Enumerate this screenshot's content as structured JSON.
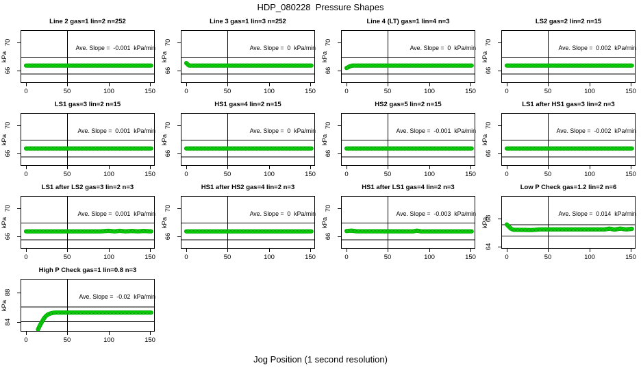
{
  "page": {
    "title": "HDP_080228  Pressure Shapes",
    "xlabel": "Jog Position (1 second resolution)"
  },
  "colors": {
    "point_green_light": "#00E300",
    "point_green_dark": "#009C00",
    "point_green_edge": "#00A800",
    "axis_black": "#000000"
  },
  "chart_data": [
    {
      "type": "scatter",
      "title": "Line 2 gas=1 lin=2 n=252",
      "slope": -0.001,
      "slope_label": "Ave. Slope =  -0.001  kPa/min",
      "ylabel": "kPa",
      "xticks": [
        0,
        50,
        100,
        150
      ],
      "yticks": [
        66,
        70
      ],
      "xlim": [
        -6.6,
        155.4
      ],
      "ylim": [
        64.2,
        71.8
      ],
      "vline": 50,
      "hlines": [
        67.9,
        65.5
      ],
      "points": [
        [
          0,
          66.7
        ],
        [
          151,
          66.7
        ]
      ]
    },
    {
      "type": "scatter",
      "title": "Line 3 gas=1 lin=3 n=252",
      "slope": 0,
      "slope_label": "Ave. Slope =  0  kPa/min",
      "ylabel": "kPa",
      "xticks": [
        0,
        50,
        100,
        150
      ],
      "yticks": [
        66,
        70
      ],
      "xlim": [
        -6.6,
        155.4
      ],
      "ylim": [
        64.2,
        71.8
      ],
      "vline": 50,
      "hlines": [
        67.9,
        65.5
      ],
      "points": [
        [
          0,
          67.05
        ],
        [
          1.5,
          66.9
        ],
        [
          3,
          66.72
        ],
        [
          5,
          66.7
        ],
        [
          151,
          66.7
        ]
      ]
    },
    {
      "type": "scatter",
      "title": "Line 4 (LT) gas=1 lin=4 n=3",
      "slope": 0,
      "slope_label": "Ave. Slope =  0  kPa/min",
      "ylabel": "kPa",
      "xticks": [
        0,
        50,
        100,
        150
      ],
      "yticks": [
        66,
        70
      ],
      "xlim": [
        -6.6,
        155.4
      ],
      "ylim": [
        64.2,
        71.8
      ],
      "vline": 50,
      "hlines": [
        67.9,
        65.5
      ],
      "points": [
        [
          0,
          66.35
        ],
        [
          2,
          66.45
        ],
        [
          4,
          66.6
        ],
        [
          7,
          66.7
        ],
        [
          151,
          66.7
        ]
      ]
    },
    {
      "type": "scatter",
      "title": "LS2 gas=2 lin=2 n=15",
      "slope": 0.002,
      "slope_label": "Ave. Slope =  0.002  kPa/min",
      "ylabel": "kPa",
      "xticks": [
        0,
        50,
        100,
        150
      ],
      "yticks": [
        66,
        70
      ],
      "xlim": [
        -6.6,
        155.4
      ],
      "ylim": [
        64.2,
        71.8
      ],
      "vline": 50,
      "hlines": [
        67.9,
        65.5
      ],
      "points": [
        [
          0,
          66.7
        ],
        [
          151,
          66.7
        ]
      ]
    },
    {
      "type": "scatter",
      "title": "LS1 gas=3 lin=2 n=15",
      "slope": 0.001,
      "slope_label": "Ave. Slope =  0.001  kPa/min",
      "ylabel": "kPa",
      "xticks": [
        0,
        50,
        100,
        150
      ],
      "yticks": [
        66,
        70
      ],
      "xlim": [
        -6.6,
        155.4
      ],
      "ylim": [
        64.2,
        71.8
      ],
      "vline": 50,
      "hlines": [
        67.9,
        65.5
      ],
      "points": [
        [
          0,
          66.7
        ],
        [
          151,
          66.7
        ]
      ]
    },
    {
      "type": "scatter",
      "title": "HS1 gas=4 lin=2 n=15",
      "slope": 0,
      "slope_label": "Ave. Slope =  0  kPa/min",
      "ylabel": "kPa",
      "xticks": [
        0,
        50,
        100,
        150
      ],
      "yticks": [
        66,
        70
      ],
      "xlim": [
        -6.6,
        155.4
      ],
      "ylim": [
        64.2,
        71.8
      ],
      "vline": 50,
      "hlines": [
        67.9,
        65.5
      ],
      "points": [
        [
          0,
          66.7
        ],
        [
          151,
          66.7
        ]
      ]
    },
    {
      "type": "scatter",
      "title": "HS2 gas=5 lin=2 n=15",
      "slope": -0.001,
      "slope_label": "Ave. Slope =  -0.001  kPa/min",
      "ylabel": "kPa",
      "xticks": [
        0,
        50,
        100,
        150
      ],
      "yticks": [
        66,
        70
      ],
      "xlim": [
        -6.6,
        155.4
      ],
      "ylim": [
        64.2,
        71.8
      ],
      "vline": 50,
      "hlines": [
        67.9,
        65.5
      ],
      "points": [
        [
          0,
          66.7
        ],
        [
          151,
          66.7
        ]
      ]
    },
    {
      "type": "scatter",
      "title": "LS1 after HS1 gas=3 lin=2 n=3",
      "slope": -0.002,
      "slope_label": "Ave. Slope =  -0.002  kPa/min",
      "ylabel": "kPa",
      "xticks": [
        0,
        50,
        100,
        150
      ],
      "yticks": [
        66,
        70
      ],
      "xlim": [
        -6.6,
        155.4
      ],
      "ylim": [
        64.2,
        71.8
      ],
      "vline": 50,
      "hlines": [
        67.9,
        65.5
      ],
      "points": [
        [
          0,
          66.7
        ],
        [
          151,
          66.7
        ]
      ]
    },
    {
      "type": "scatter",
      "title": "LS1 after LS2 gas=3 lin=2 n=3",
      "slope": 0.001,
      "slope_label": "Ave. Slope =  0.001  kPa/min",
      "ylabel": "kPa",
      "xticks": [
        0,
        50,
        100,
        150
      ],
      "yticks": [
        66,
        70
      ],
      "xlim": [
        -6.6,
        155.4
      ],
      "ylim": [
        64.2,
        71.8
      ],
      "vline": 50,
      "hlines": [
        67.9,
        65.5
      ],
      "points": [
        [
          0,
          66.7
        ],
        [
          90,
          66.7
        ],
        [
          100,
          66.78
        ],
        [
          107,
          66.7
        ],
        [
          113,
          66.78
        ],
        [
          120,
          66.7
        ],
        [
          128,
          66.76
        ],
        [
          135,
          66.7
        ],
        [
          142,
          66.76
        ],
        [
          151,
          66.7
        ]
      ]
    },
    {
      "type": "scatter",
      "title": "HS1 after HS2 gas=4 lin=2 n=3",
      "slope": 0,
      "slope_label": "Ave. Slope =  0  kPa/min",
      "ylabel": "kPa",
      "xticks": [
        0,
        50,
        100,
        150
      ],
      "yticks": [
        66,
        70
      ],
      "xlim": [
        -6.6,
        155.4
      ],
      "ylim": [
        64.2,
        71.8
      ],
      "vline": 50,
      "hlines": [
        67.9,
        65.5
      ],
      "points": [
        [
          0,
          66.7
        ],
        [
          151,
          66.7
        ]
      ]
    },
    {
      "type": "scatter",
      "title": "HS1 after LS1 gas=4 lin=2 n=3",
      "slope": -0.003,
      "slope_label": "Ave. Slope =  -0.003  kPa/min",
      "ylabel": "kPa",
      "xticks": [
        0,
        50,
        100,
        150
      ],
      "yticks": [
        66,
        70
      ],
      "xlim": [
        -6.6,
        155.4
      ],
      "ylim": [
        64.2,
        71.8
      ],
      "vline": 50,
      "hlines": [
        67.9,
        65.5
      ],
      "points": [
        [
          0,
          66.75
        ],
        [
          6,
          66.8
        ],
        [
          12,
          66.72
        ],
        [
          80,
          66.7
        ],
        [
          85,
          66.8
        ],
        [
          90,
          66.7
        ],
        [
          151,
          66.7
        ]
      ]
    },
    {
      "type": "scatter",
      "title": "Low P Check gas=1.2 lin=2 n=6",
      "slope": 0.014,
      "slope_label": "Ave. Slope =  0.014  kPa/min",
      "ylabel": "kPa",
      "xticks": [
        0,
        50,
        100,
        150
      ],
      "yticks": [
        64,
        68
      ],
      "xlim": [
        -6.6,
        155.4
      ],
      "ylim": [
        63.7,
        71.2
      ],
      "vline": 50,
      "hlines": [
        67.1,
        65.5
      ],
      "points": [
        [
          0,
          67.15
        ],
        [
          2,
          66.9
        ],
        [
          5,
          66.55
        ],
        [
          8,
          66.4
        ],
        [
          30,
          66.35
        ],
        [
          40,
          66.45
        ],
        [
          118,
          66.45
        ],
        [
          124,
          66.55
        ],
        [
          130,
          66.42
        ],
        [
          137,
          66.55
        ],
        [
          144,
          66.45
        ],
        [
          151,
          66.52
        ]
      ]
    },
    {
      "type": "scatter",
      "title": "High P Check gas=1 lin=0.8 n=3",
      "slope": -0.02,
      "slope_label": "Ave. Slope =  -0.02  kPa/min",
      "ylabel": "kPa",
      "xticks": [
        0,
        50,
        100,
        150
      ],
      "yticks": [
        84,
        88
      ],
      "xlim": [
        -6.6,
        155.4
      ],
      "ylim": [
        82.7,
        89.9
      ],
      "vline": 50,
      "hlines": [
        86.05,
        84.05
      ],
      "points": [
        [
          14.5,
          83.0
        ],
        [
          16,
          83.35
        ],
        [
          18,
          83.8
        ],
        [
          20,
          84.2
        ],
        [
          22,
          84.55
        ],
        [
          24,
          84.82
        ],
        [
          26,
          85.0
        ],
        [
          28,
          85.12
        ],
        [
          30,
          85.2
        ],
        [
          33,
          85.27
        ],
        [
          36,
          85.3
        ],
        [
          151,
          85.3
        ]
      ]
    }
  ]
}
